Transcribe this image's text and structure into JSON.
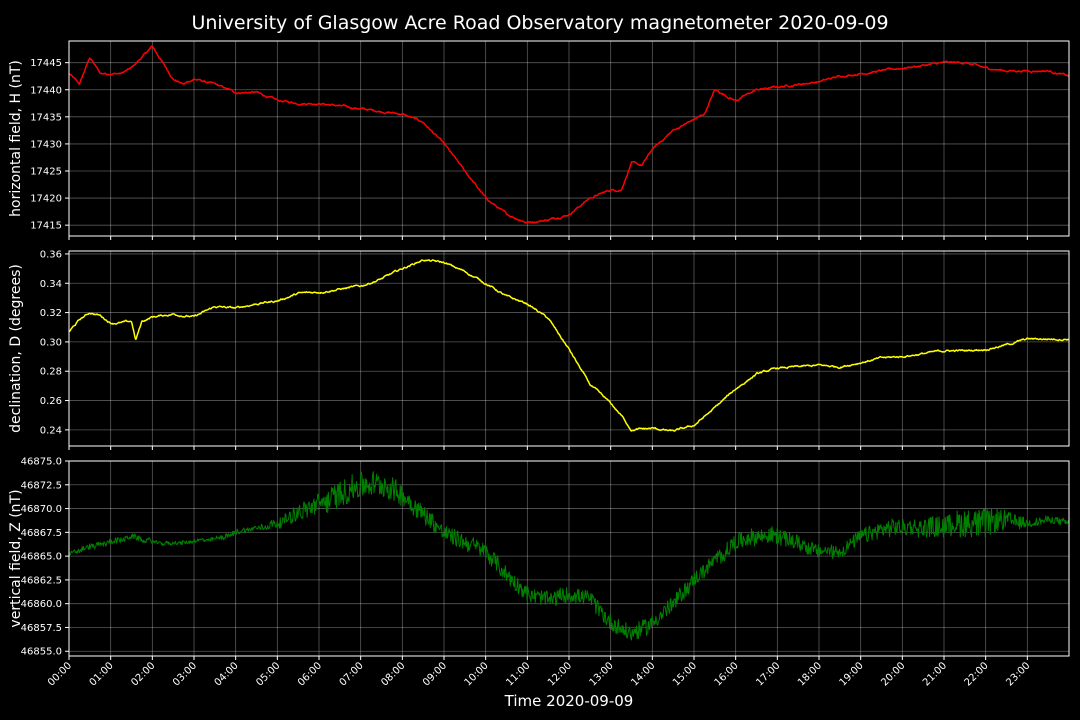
{
  "chart_data": {
    "type": "line",
    "title": "University of Glasgow Acre Road Observatory magnetometer 2020-09-09",
    "xlabel": "Time 2020-09-09",
    "x_unit": "hours",
    "xlim": [
      0,
      24
    ],
    "x_ticks": [
      {
        "value": 0,
        "label": "00:00"
      },
      {
        "value": 1,
        "label": "01:00"
      },
      {
        "value": 2,
        "label": "02:00"
      },
      {
        "value": 3,
        "label": "03:00"
      },
      {
        "value": 4,
        "label": "04:00"
      },
      {
        "value": 5,
        "label": "05:00"
      },
      {
        "value": 6,
        "label": "06:00"
      },
      {
        "value": 7,
        "label": "07:00"
      },
      {
        "value": 8,
        "label": "08:00"
      },
      {
        "value": 9,
        "label": "09:00"
      },
      {
        "value": 10,
        "label": "10:00"
      },
      {
        "value": 11,
        "label": "11:00"
      },
      {
        "value": 12,
        "label": "12:00"
      },
      {
        "value": 13,
        "label": "13:00"
      },
      {
        "value": 14,
        "label": "14:00"
      },
      {
        "value": 15,
        "label": "15:00"
      },
      {
        "value": 16,
        "label": "16:00"
      },
      {
        "value": 17,
        "label": "17:00"
      },
      {
        "value": 18,
        "label": "18:00"
      },
      {
        "value": 19,
        "label": "19:00"
      },
      {
        "value": 20,
        "label": "20:00"
      },
      {
        "value": 21,
        "label": "21:00"
      },
      {
        "value": 22,
        "label": "22:00"
      },
      {
        "value": 23,
        "label": "23:00"
      }
    ],
    "grid": true,
    "background": "#000000",
    "panels": [
      {
        "ylabel": "horizontal field, H (nT)",
        "ylim": [
          17413,
          17449
        ],
        "y_ticks": [
          {
            "value": 17415,
            "label": "17415"
          },
          {
            "value": 17420,
            "label": "17420"
          },
          {
            "value": 17425,
            "label": "17425"
          },
          {
            "value": 17430,
            "label": "17430"
          },
          {
            "value": 17435,
            "label": "17435"
          },
          {
            "value": 17440,
            "label": "17440"
          },
          {
            "value": 17445,
            "label": "17445"
          }
        ],
        "color": "#ff0000",
        "x": [
          0,
          0.25,
          0.5,
          0.75,
          1,
          1.25,
          1.5,
          1.75,
          2,
          2.25,
          2.5,
          2.75,
          3,
          3.5,
          4,
          4.5,
          5,
          5.5,
          6,
          6.5,
          7,
          7.5,
          8,
          8.5,
          9,
          9.5,
          10,
          10.5,
          11,
          11.5,
          12,
          12.5,
          13,
          13.25,
          13.5,
          13.75,
          14,
          14.5,
          15,
          15.25,
          15.5,
          15.75,
          16,
          16.5,
          17,
          17.5,
          18,
          18.5,
          19,
          19.5,
          20,
          20.5,
          21,
          21.5,
          22,
          22.5,
          23,
          23.5,
          24
        ],
        "values": [
          17443,
          17441,
          17446,
          17443,
          17443,
          17443,
          17444,
          17446,
          17448,
          17445,
          17442,
          17441,
          17442,
          17441,
          17439.5,
          17439.5,
          17438,
          17437.5,
          17437.5,
          17437,
          17436.5,
          17436,
          17435.5,
          17434,
          17430,
          17425,
          17420,
          17417,
          17415.5,
          17416,
          17417,
          17420,
          17421.5,
          17421.5,
          17426.5,
          17426,
          17429,
          17432.5,
          17434.5,
          17435.5,
          17440,
          17439,
          17438,
          17440,
          17440.5,
          17441,
          17441.5,
          17442.5,
          17443,
          17443.5,
          17444,
          17444.5,
          17445,
          17445,
          17444,
          17443.5,
          17443.5,
          17443.5,
          17442.5
        ]
      },
      {
        "ylabel": "declination, D (degrees)",
        "ylim": [
          0.229,
          0.362
        ],
        "y_ticks": [
          {
            "value": 0.24,
            "label": "0.24"
          },
          {
            "value": 0.26,
            "label": "0.26"
          },
          {
            "value": 0.28,
            "label": "0.28"
          },
          {
            "value": 0.3,
            "label": "0.30"
          },
          {
            "value": 0.32,
            "label": "0.32"
          },
          {
            "value": 0.34,
            "label": "0.34"
          },
          {
            "value": 0.36,
            "label": "0.36"
          }
        ],
        "color": "#ffff00",
        "x": [
          0,
          0.25,
          0.5,
          0.75,
          1,
          1.25,
          1.5,
          1.6,
          1.75,
          2,
          2.5,
          3,
          3.5,
          4,
          4.5,
          5,
          5.5,
          6,
          6.5,
          7,
          7.5,
          8,
          8.5,
          9,
          9.5,
          10,
          10.5,
          11,
          11.5,
          12,
          12.5,
          13,
          13.25,
          13.5,
          14,
          14.5,
          15,
          15.5,
          16,
          16.5,
          17,
          17.5,
          18,
          18.5,
          19,
          19.5,
          20,
          20.5,
          21,
          21.5,
          22,
          22.5,
          23,
          23.5,
          24
        ],
        "values": [
          0.307,
          0.315,
          0.32,
          0.318,
          0.313,
          0.313,
          0.314,
          0.301,
          0.314,
          0.317,
          0.319,
          0.317,
          0.324,
          0.323,
          0.326,
          0.328,
          0.333,
          0.334,
          0.336,
          0.338,
          0.343,
          0.35,
          0.356,
          0.354,
          0.348,
          0.34,
          0.331,
          0.326,
          0.316,
          0.295,
          0.271,
          0.258,
          0.25,
          0.24,
          0.241,
          0.239,
          0.243,
          0.255,
          0.268,
          0.278,
          0.282,
          0.283,
          0.284,
          0.283,
          0.286,
          0.289,
          0.29,
          0.292,
          0.294,
          0.294,
          0.295,
          0.298,
          0.302,
          0.302,
          0.302
        ]
      },
      {
        "ylabel": "vertical field, Z (nT)",
        "ylim": [
          46854.5,
          46875
        ],
        "y_ticks": [
          {
            "value": 46855,
            "label": "46855.0"
          },
          {
            "value": 46857.5,
            "label": "46857.5"
          },
          {
            "value": 46860,
            "label": "46860.0"
          },
          {
            "value": 46862.5,
            "label": "46862.5"
          },
          {
            "value": 46865,
            "label": "46865.0"
          },
          {
            "value": 46867.5,
            "label": "46867.5"
          },
          {
            "value": 46870,
            "label": "46870.0"
          },
          {
            "value": 46872.5,
            "label": "46872.5"
          },
          {
            "value": 46875,
            "label": "46875.0"
          }
        ],
        "color": "#008000",
        "x": [
          0,
          0.5,
          1,
          1.5,
          2,
          2.5,
          3,
          3.5,
          4,
          4.5,
          5,
          5.5,
          6,
          6.5,
          7,
          7.5,
          8,
          8.5,
          9,
          9.5,
          10,
          10.5,
          11,
          11.5,
          12,
          12.5,
          13,
          13.5,
          14,
          14.5,
          15,
          15.5,
          16,
          16.5,
          17,
          17.5,
          18,
          18.5,
          19,
          19.5,
          20,
          20.5,
          21,
          21.5,
          22,
          22.5,
          23,
          23.5,
          24
        ],
        "values": [
          46865.2,
          46866,
          46866.5,
          46867,
          46866.5,
          46866.3,
          46866.5,
          46866.8,
          46867.5,
          46868,
          46868.5,
          46869.5,
          46870.5,
          46871.5,
          46872.5,
          46872.5,
          46871.5,
          46869.5,
          46867.5,
          46866.5,
          46865.5,
          46863,
          46861,
          46860.5,
          46861,
          46860.5,
          46858,
          46856.8,
          46858,
          46860,
          46862.5,
          46864.5,
          46866.5,
          46867,
          46867.2,
          46866.5,
          46865.5,
          46865.5,
          46867,
          46867.8,
          46868,
          46868,
          46868.2,
          46868.5,
          46868.5,
          46868.8,
          46868.5,
          46868.8,
          46868.5
        ],
        "noise": [
          0.3,
          0.3,
          0.3,
          0.3,
          0.2,
          0.2,
          0.2,
          0.2,
          0.3,
          0.3,
          0.5,
          0.9,
          1.2,
          1.4,
          1.4,
          1.4,
          1.2,
          1.0,
          0.9,
          0.9,
          0.9,
          0.9,
          0.8,
          0.8,
          0.8,
          0.8,
          0.9,
          0.9,
          0.9,
          0.9,
          0.8,
          0.8,
          0.9,
          0.9,
          0.9,
          0.8,
          0.7,
          0.7,
          0.8,
          0.9,
          0.9,
          1.0,
          1.2,
          1.5,
          1.6,
          1.0,
          0.5,
          0.4,
          0.4
        ]
      }
    ]
  }
}
